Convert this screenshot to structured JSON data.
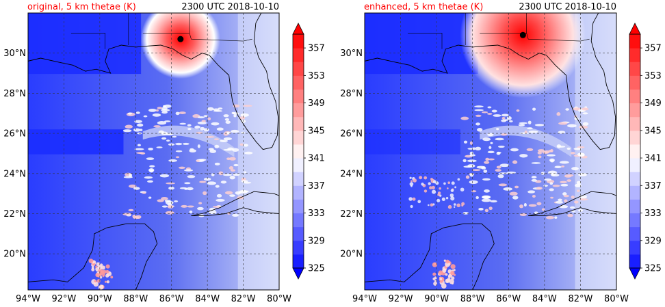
{
  "panels": [
    {
      "id": "original",
      "title_left": "original, 5 km thetae (K)",
      "title_right": "2300 UTC 2018-10-10",
      "storm_center": {
        "lon": -85.5,
        "lat": 30.7
      }
    },
    {
      "id": "enhanced",
      "title_left": "enhanced, 5 km thetae (K)",
      "title_right": "2300 UTC 2018-10-10",
      "storm_center": {
        "lon": -85.2,
        "lat": 30.9
      }
    }
  ],
  "map": {
    "lon_range": [
      -94,
      -80
    ],
    "lat_range": [
      18.2,
      32.0
    ],
    "lon_ticks": [
      "94°W",
      "92°W",
      "90°W",
      "88°W",
      "86°W",
      "84°W",
      "82°W",
      "80°W"
    ],
    "lat_ticks": [
      "20°N",
      "22°N",
      "24°N",
      "26°N",
      "28°N",
      "30°N"
    ],
    "gridlines": true
  },
  "colorbar": {
    "min": 325,
    "max": 359,
    "step": 2,
    "extend": "both",
    "tick_labels": [
      "325",
      "329",
      "333",
      "337",
      "341",
      "345",
      "349",
      "353",
      "357"
    ],
    "colors": {
      "low_end": "#0a10ff",
      "mid": "#ffffff",
      "high_end": "#ff0000",
      "over": "#ff0000",
      "under": "#0000ff"
    }
  }
}
